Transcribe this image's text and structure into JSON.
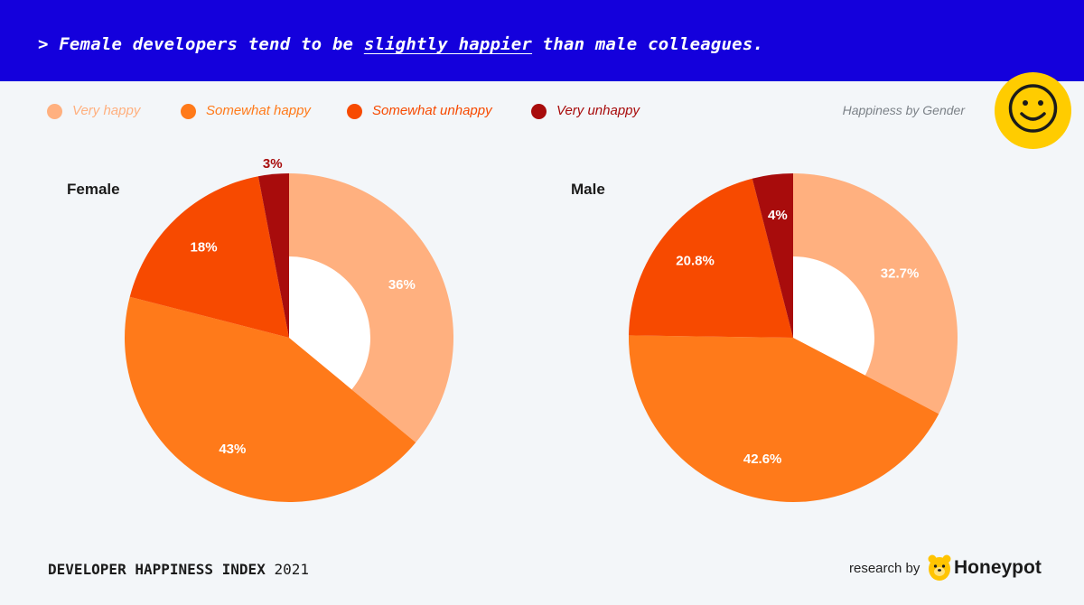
{
  "headline": {
    "prefix": "> Female developers tend to be ",
    "emphasis": "slightly happier",
    "suffix": " than male colleagues."
  },
  "subtitle": "Happiness by Gender",
  "icons": {
    "mood": "smiley-face-icon",
    "brand": "honeypot-bear-icon"
  },
  "footer": {
    "title": "DEVELOPER HAPPINESS INDEX",
    "year": "2021",
    "research_by": "research by",
    "brand": "Honeypot"
  },
  "colors": {
    "banner": "#1400dc",
    "very_happy": "#ffb07f",
    "somewhat_happy": "#ff7a1a",
    "somewhat_unhappy": "#f74a00",
    "very_unhappy": "#a80c0c",
    "smiley": "#ffcc00"
  },
  "chart_data": {
    "type": "donut",
    "legend": [
      "Very happy",
      "Somewhat happy",
      "Somewhat unhappy",
      "Very unhappy"
    ],
    "legend_placement": "top-left",
    "charts": [
      {
        "name": "Female",
        "values": [
          36,
          43,
          18,
          3
        ],
        "labels": [
          "36%",
          "43%",
          "18%",
          "3%"
        ]
      },
      {
        "name": "Male",
        "values": [
          32.7,
          42.6,
          20.8,
          4
        ],
        "labels": [
          "32.7%",
          "42.6%",
          "20.8%",
          "4%"
        ]
      }
    ]
  }
}
